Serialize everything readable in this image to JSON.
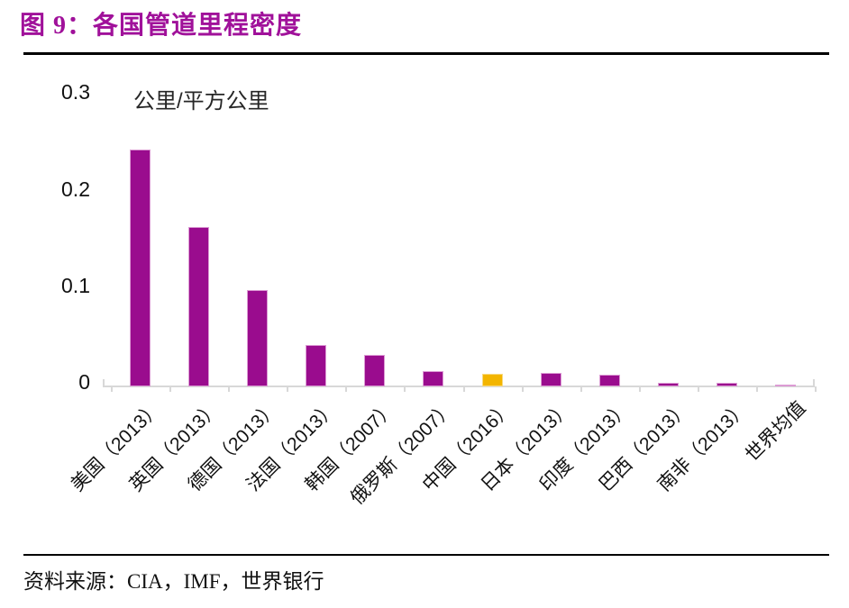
{
  "figure": {
    "number_and_title": "图 9：各国管道里程密度",
    "source": "资料来源：CIA，IMF，世界银行"
  },
  "chart_data": {
    "type": "bar",
    "title": "各国管道里程密度",
    "unit_label": "公里/平方公里",
    "ylabel": "公里/平方公里",
    "xlabel": "",
    "ylim": [
      0,
      0.3
    ],
    "yticks": [
      {
        "value": 0,
        "label": "0"
      },
      {
        "value": 0.1,
        "label": "0.1"
      },
      {
        "value": 0.2,
        "label": "0.2"
      },
      {
        "value": 0.3,
        "label": "0.3"
      }
    ],
    "grid": false,
    "legend": null,
    "categories": [
      "美国（2013）",
      "英国（2013）",
      "德国（2013）",
      "法国（2013）",
      "韩国（2007）",
      "俄罗斯（2007）",
      "中国（2016）",
      "日本（2013）",
      "印度（2013）",
      "巴西（2013）",
      "南非（2013）",
      "世界均值"
    ],
    "values": [
      0.245,
      0.165,
      0.1,
      0.043,
      0.033,
      0.016,
      0.013,
      0.014,
      0.012,
      0.004,
      0.004,
      0.002
    ],
    "highlight_index": 6,
    "highlight_category": "中国（2016）"
  },
  "colors": {
    "title": "#A0119A",
    "bar": "#9A0C8E",
    "bar_border": "#DC9BD4",
    "highlight_bar": "#F3B500",
    "highlight_bar_border": "#F8DA80",
    "axis": "#D8D8D8",
    "text": "#1A1A1A"
  }
}
